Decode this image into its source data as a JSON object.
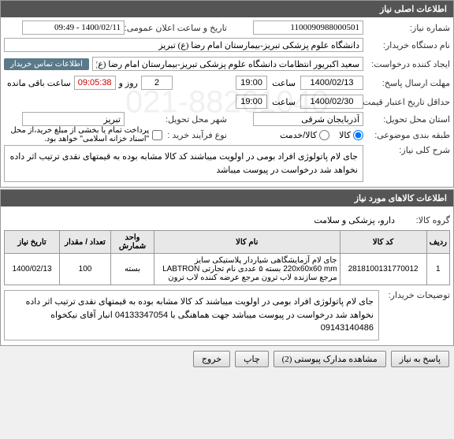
{
  "headers": {
    "main": "اطلاعات اصلی نیاز",
    "items": "اطلاعات کالاهای مورد نیاز"
  },
  "labels": {
    "reqNo": "شماره نیاز:",
    "announceDateTime": "تاریخ و ساعت اعلان عمومی:",
    "buyerOrg": "نام دستگاه خریدار:",
    "creator": "ایجاد کننده درخواست:",
    "buyerContact": "اطلاعات تماس خریدار",
    "replyDeadline": "مهلت ارسال پاسخ:",
    "creditDate": "حداقل تاریخ اعتبار قیمت:",
    "hour": "ساعت",
    "dayAnd": "روز و",
    "remaining": "ساعت باقی مانده",
    "deliveryProvince": "استان محل تحویل:",
    "deliveryCity": "شهر محل تحویل:",
    "packageType": "طبقه بندی موضوعی:",
    "processType": "نوع فرآیند خرید :",
    "goods": "کالا",
    "service": "کالا/خدمت",
    "paymentNote": "پرداخت تمام یا بخشی از مبلغ خرید،از محل \"اسناد خزانه اسلامی\" خواهد بود.",
    "generalDesc": "شرح کلی نیاز:",
    "goodsGroup": "گروه کالا:",
    "buyerDesc": "توضیحات خریدار:",
    "backToNeed": "پاسخ به نیاز",
    "viewAttachments": "مشاهده مدارک پیوستی (2)",
    "print": "چاپ",
    "exit": "خروج"
  },
  "values": {
    "reqNo": "1100090988000501",
    "announceDateTime": "1400/02/11 - 09:49",
    "buyerOrg": "دانشگاه علوم پزشکی تبریز-بیمارستان امام رضا (ع) تبریز",
    "creator": "سعید اکبریور انتظامات دانشگاه علوم پزشکی تبریز-بیمارستان امام رضا (ع) تبریز",
    "replyDate": "1400/02/13",
    "replyTime": "19:00",
    "remainDays": "2",
    "remainTime": "09:05:38",
    "creditDate": "1400/02/30",
    "creditTime": "19:00",
    "province": "آذربایجان شرقی",
    "city": "تبریز",
    "generalDesc": "جای لام پاتولوژی افراد بومی در اولویت میباشند کد کالا مشابه بوده به قیمتهای نقدی ترتیب اثر داده نخواهد شد درخواست در پیوست میباشد",
    "goodsGroup": "دارو، پزشکی و سلامت",
    "buyerDesc": "جای لام پاتولوژی افراد بومی در اولویت میباشند کد کالا مشابه بوده به قیمتهای نقدی ترتیب اثر داده نخواهد شد درخواست در پیوست میباشد جهت هماهنگی با 04133347054 انبار آقای نیکخواه 09143140486"
  },
  "table": {
    "cols": [
      "ردیف",
      "کد کالا",
      "نام کالا",
      "واحد شمارش",
      "تعداد / مقدار",
      "تاریخ نیاز"
    ],
    "rows": [
      [
        "1",
        "2818100131770012",
        "جای لام آزمایشگاهی شیاردار پلاستیکی سایز 220x60x60 mm بسته ۵ عددی نام تجارتی LABTRON مرجع سازنده لاب ترون مرجع عرضه کننده لاب ترون",
        "بسته",
        "100",
        "1400/02/13"
      ]
    ]
  },
  "watermark": "021-88261040"
}
